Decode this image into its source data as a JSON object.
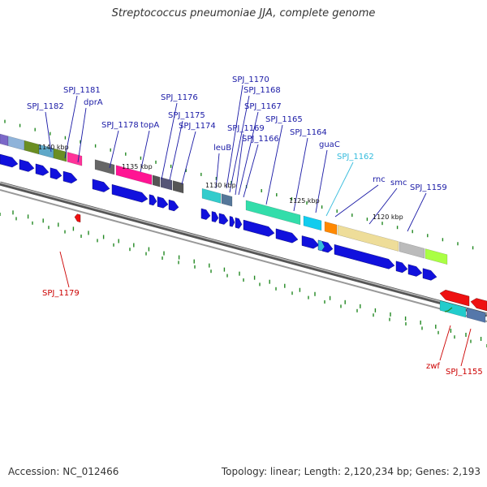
{
  "title": "Streptococcus pneumoniae JJA, complete genome",
  "footer": {
    "accession": "Accession: NC_012466",
    "summary": "Topology: linear; Length: 2,120,234 bp; Genes: 2,193"
  },
  "colors": {
    "label_blue": "#1a1aa6",
    "label_cyan": "#33bbdd",
    "label_red": "#cc0000",
    "gene_blue": "#1111dd",
    "gene_red": "#ee1111",
    "backbone": "#888888",
    "tick_green": "#228822"
  },
  "scale_labels": [
    "1140 kbp",
    "1135 kbp",
    "1130 kbp",
    "1125 kbp",
    "1120 kbp"
  ],
  "gene_labels": [
    {
      "text": "SPJ_1182",
      "color": "blue"
    },
    {
      "text": "SPJ_1181",
      "color": "blue"
    },
    {
      "text": "dprA",
      "color": "blue"
    },
    {
      "text": "SPJ_1178",
      "color": "blue"
    },
    {
      "text": "topA",
      "color": "blue"
    },
    {
      "text": "SPJ_1176",
      "color": "blue"
    },
    {
      "text": "SPJ_1175",
      "color": "blue"
    },
    {
      "text": "SPJ_1174",
      "color": "blue"
    },
    {
      "text": "SPJ_1170",
      "color": "blue"
    },
    {
      "text": "SPJ_1168",
      "color": "blue"
    },
    {
      "text": "SPJ_1167",
      "color": "blue"
    },
    {
      "text": "SPJ_1169",
      "color": "blue"
    },
    {
      "text": "SPJ_1166",
      "color": "blue"
    },
    {
      "text": "SPJ_1165",
      "color": "blue"
    },
    {
      "text": "leuB",
      "color": "blue"
    },
    {
      "text": "SPJ_1164",
      "color": "blue"
    },
    {
      "text": "guaC",
      "color": "blue"
    },
    {
      "text": "SPJ_1162",
      "color": "cyan"
    },
    {
      "text": "rnc",
      "color": "blue"
    },
    {
      "text": "smc",
      "color": "blue"
    },
    {
      "text": "SPJ_1159",
      "color": "blue"
    },
    {
      "text": "SPJ_1179",
      "color": "red"
    },
    {
      "text": "zwf",
      "color": "red"
    },
    {
      "text": "SPJ_1155",
      "color": "red"
    }
  ]
}
